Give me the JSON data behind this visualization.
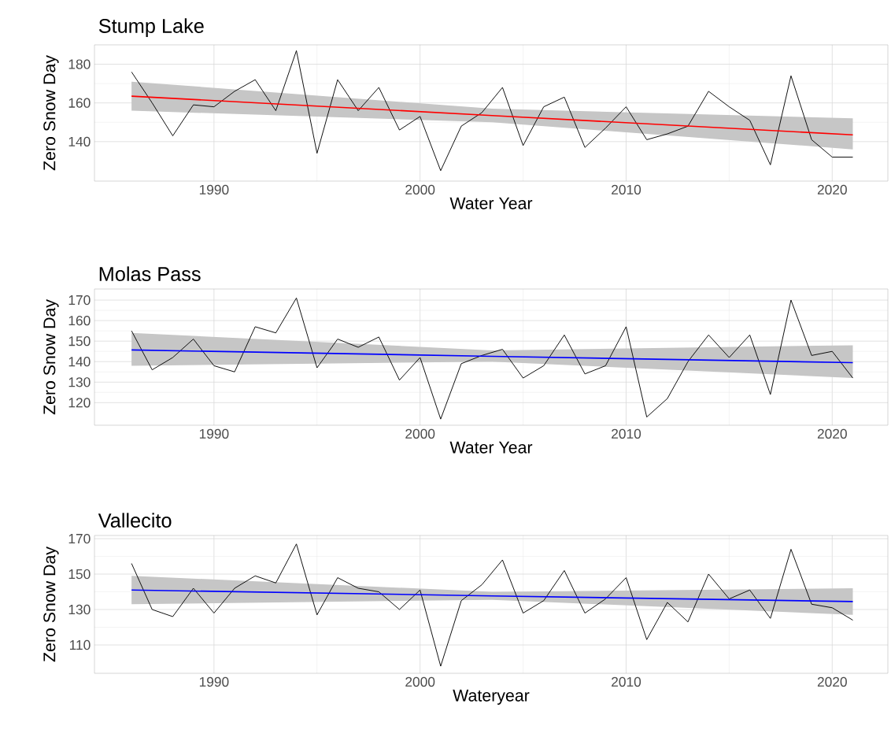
{
  "chart_data": [
    {
      "type": "line",
      "title": "Stump Lake",
      "xlabel": "Water Year",
      "ylabel": "Zero Snow Day",
      "x": [
        1986,
        1987,
        1988,
        1989,
        1990,
        1991,
        1992,
        1993,
        1994,
        1995,
        1996,
        1997,
        1998,
        1999,
        2000,
        2001,
        2002,
        2003,
        2004,
        2005,
        2006,
        2007,
        2008,
        2009,
        2010,
        2011,
        2012,
        2013,
        2014,
        2015,
        2016,
        2017,
        2018,
        2019,
        2020,
        2021
      ],
      "xlim": [
        1984.2,
        2022.7
      ],
      "ylim": [
        119.6,
        190
      ],
      "xticks": [
        1990,
        2000,
        2010,
        2020
      ],
      "yticks": [
        140,
        160,
        180
      ],
      "grid": true,
      "marker": "none",
      "series": [
        {
          "color": "#000000",
          "values": [
            176,
            160,
            143,
            159,
            158,
            166,
            172,
            156,
            187,
            134,
            172,
            156,
            168,
            146,
            153,
            125,
            148,
            155,
            168,
            138,
            158,
            163,
            137,
            147,
            158,
            141,
            144,
            148,
            166,
            158,
            151,
            128,
            174,
            141,
            132,
            132
          ]
        },
        {
          "color": "#ff0000",
          "x": [
            1986,
            2003.5,
            2021
          ],
          "values": [
            163.5,
            153.5,
            143.5
          ],
          "lower": [
            156,
            150,
            136
          ],
          "upper": [
            171,
            157,
            152
          ]
        }
      ]
    },
    {
      "type": "line",
      "title": "Molas Pass",
      "xlabel": "Water Year",
      "ylabel": "Zero Snow Day",
      "x": [
        1986,
        1987,
        1988,
        1989,
        1990,
        1991,
        1992,
        1993,
        1994,
        1995,
        1996,
        1997,
        1998,
        1999,
        2000,
        2001,
        2002,
        2003,
        2004,
        2005,
        2006,
        2007,
        2008,
        2009,
        2010,
        2011,
        2012,
        2013,
        2014,
        2015,
        2016,
        2017,
        2018,
        2019,
        2020,
        2021
      ],
      "xlim": [
        1984.2,
        2022.7
      ],
      "ylim": [
        109,
        175.4
      ],
      "xticks": [
        1990,
        2000,
        2010,
        2020
      ],
      "yticks": [
        120,
        130,
        140,
        150,
        160,
        170
      ],
      "grid": true,
      "marker": "none",
      "series": [
        {
          "color": "#000000",
          "values": [
            155,
            136,
            142,
            151,
            138,
            135,
            157,
            154,
            171,
            137,
            151,
            147,
            152,
            131,
            142,
            112,
            139,
            143,
            146,
            132,
            138,
            153,
            134,
            138,
            157,
            113,
            122,
            140,
            153,
            142,
            153,
            124,
            170,
            143,
            145,
            132
          ]
        },
        {
          "color": "#0000ff",
          "x": [
            1986,
            2003.5,
            2021
          ],
          "values": [
            145.7,
            142.6,
            139.5
          ],
          "lower": [
            138,
            140,
            132
          ],
          "upper": [
            154,
            145.5,
            148
          ]
        }
      ]
    },
    {
      "type": "line",
      "title": "Vallecito",
      "xlabel": "Wateryear",
      "ylabel": "Zero Snow Day",
      "x": [
        1986,
        1987,
        1988,
        1989,
        1990,
        1991,
        1992,
        1993,
        1994,
        1995,
        1996,
        1997,
        1998,
        1999,
        2000,
        2001,
        2002,
        2003,
        2004,
        2005,
        2006,
        2007,
        2008,
        2009,
        2010,
        2011,
        2012,
        2013,
        2014,
        2015,
        2016,
        2017,
        2018,
        2019,
        2020,
        2021
      ],
      "xlim": [
        1984.2,
        2022.7
      ],
      "ylim": [
        94,
        171.8
      ],
      "xticks": [
        1990,
        2000,
        2010,
        2020
      ],
      "yticks": [
        110,
        130,
        150,
        170
      ],
      "grid": true,
      "marker": "none",
      "series": [
        {
          "color": "#000000",
          "values": [
            156,
            130,
            126,
            142,
            128,
            142,
            149,
            145,
            167,
            127,
            148,
            142,
            140,
            130,
            141,
            98,
            135,
            144,
            158,
            128,
            135,
            152,
            128,
            136,
            148,
            113,
            134,
            123,
            150,
            136,
            141,
            125,
            164,
            133,
            131,
            124
          ]
        },
        {
          "color": "#0000ff",
          "x": [
            1986,
            2003.5,
            2021
          ],
          "values": [
            141,
            137.7,
            134.5
          ],
          "lower": [
            133,
            135.5,
            127
          ],
          "upper": [
            149,
            140,
            142
          ]
        }
      ]
    }
  ]
}
